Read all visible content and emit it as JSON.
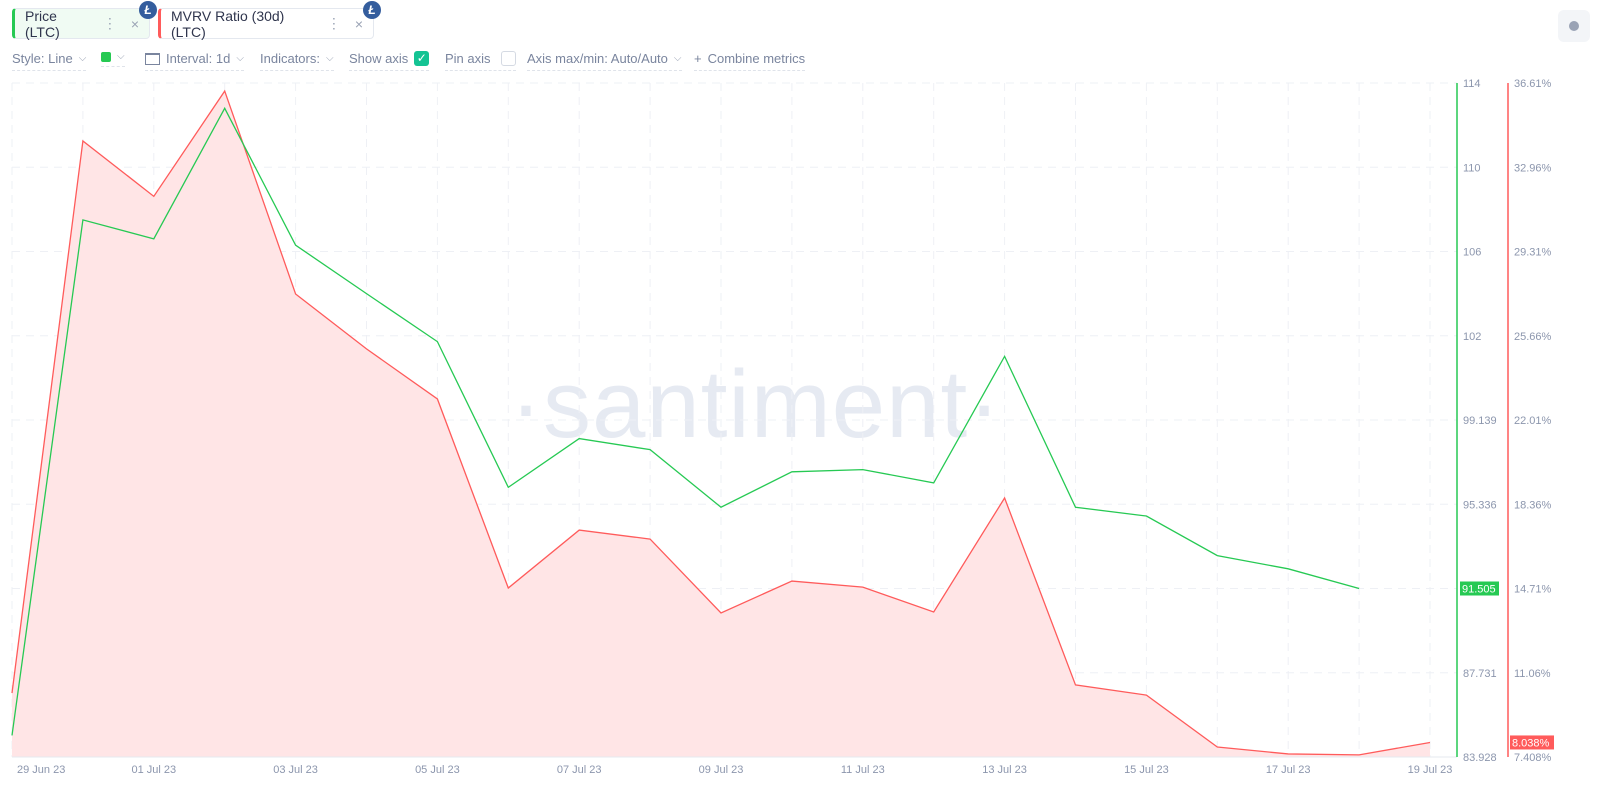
{
  "metrics": [
    {
      "label": "Price (LTC)",
      "color": "#26c953",
      "bg": "#f0fbf3"
    },
    {
      "label": "MVRV Ratio (30d) (LTC)",
      "color": "#ff5b5b",
      "bg": "#ffffff"
    }
  ],
  "toolbar": {
    "style": "Style: Line",
    "interval": "Interval: 1d",
    "indicators": "Indicators:",
    "show_axis": "Show axis",
    "show_axis_checked": true,
    "pin_axis": "Pin axis",
    "pin_axis_checked": false,
    "axis_maxmin": "Axis max/min: Auto/Auto",
    "combine": "Combine metrics",
    "swatch_color": "#26c953"
  },
  "watermark": "·santiment·",
  "chart_data": {
    "type": "line",
    "x": [
      "29 Jun 23",
      "30 Jun 23",
      "01 Jul 23",
      "02 Jul 23",
      "03 Jul 23",
      "04 Jul 23",
      "05 Jul 23",
      "06 Jul 23",
      "07 Jul 23",
      "08 Jul 23",
      "09 Jul 23",
      "10 Jul 23",
      "11 Jul 23",
      "12 Jul 23",
      "13 Jul 23",
      "14 Jul 23",
      "15 Jul 23",
      "16 Jul 23",
      "17 Jul 23",
      "18 Jul 23",
      "19 Jul 23"
    ],
    "x_tick_labels": [
      "29 Jun 23",
      "01 Jul 23",
      "03 Jul 23",
      "05 Jul 23",
      "07 Jul 23",
      "09 Jul 23",
      "11 Jul 23",
      "13 Jul 23",
      "15 Jul 23",
      "17 Jul 23",
      "19 Jul 23"
    ],
    "series": [
      {
        "name": "Price (LTC)",
        "color": "#26c953",
        "axis": "left-inner",
        "values": [
          84.9,
          107.5,
          106.6,
          112.8,
          106.3,
          104.0,
          101.8,
          96.1,
          98.3,
          97.8,
          95.2,
          96.8,
          96.9,
          96.3,
          101.3,
          95.2,
          94.8,
          93.0,
          92.4,
          91.505,
          null
        ],
        "last_label": "91.505"
      },
      {
        "name": "MVRV Ratio (30d) (LTC)",
        "color": "#ff5b5b",
        "fill": "#ffe5e6",
        "axis": "right",
        "values": [
          10.18,
          34.1,
          31.7,
          36.26,
          27.47,
          25.09,
          22.92,
          14.73,
          17.24,
          16.85,
          13.65,
          15.03,
          14.77,
          13.69,
          18.63,
          10.53,
          10.09,
          7.84,
          7.54,
          7.5,
          8.038
        ],
        "last_label": "8.038%"
      }
    ],
    "price_axis": {
      "ticks": [
        "114",
        "110",
        "106",
        "102",
        "99.139",
        "95.336",
        "91.505",
        "87.731",
        "83.928"
      ],
      "tick_values": [
        114,
        110,
        106,
        102,
        99.139,
        95.336,
        91.505,
        87.731,
        83.928
      ]
    },
    "mvrv_axis": {
      "ticks": [
        "36.61%",
        "32.96%",
        "29.31%",
        "25.66%",
        "22.01%",
        "18.36%",
        "14.71%",
        "11.06%",
        "7.408%"
      ],
      "range": [
        7.408,
        36.61
      ]
    },
    "grid": true
  }
}
